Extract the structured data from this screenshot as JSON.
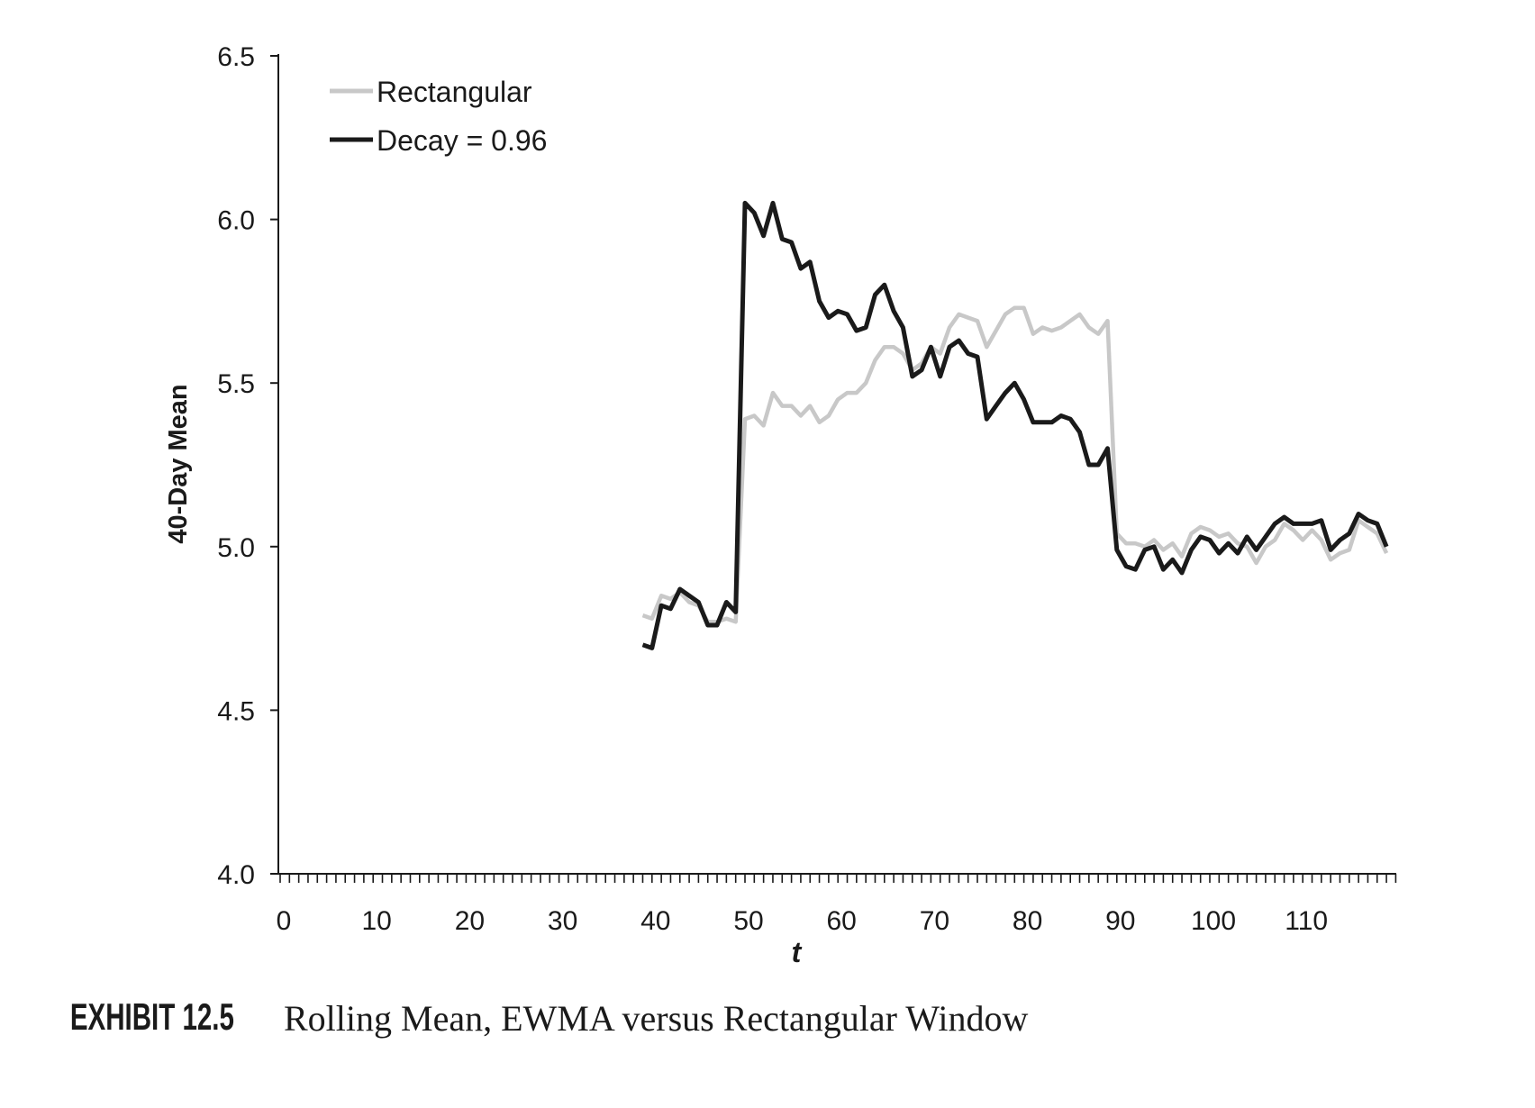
{
  "chart_data": {
    "type": "line",
    "title": "",
    "xlabel": "t",
    "ylabel": "40-Day Mean",
    "xlim": [
      0,
      120
    ],
    "ylim": [
      4.0,
      6.5
    ],
    "xticks": [
      0,
      10,
      20,
      30,
      40,
      50,
      60,
      70,
      80,
      90,
      100,
      110
    ],
    "yticks": [
      "4.0",
      "4.5",
      "5.0",
      "5.5",
      "6.0",
      "6.5"
    ],
    "grid": false,
    "legend_position": "top-left",
    "x_start": 39,
    "series": [
      {
        "name": "Rectangular",
        "color": "#c8c8c8",
        "values": [
          4.79,
          4.78,
          4.85,
          4.84,
          4.86,
          4.83,
          4.82,
          4.77,
          4.77,
          4.78,
          4.77,
          5.39,
          5.4,
          5.37,
          5.47,
          5.43,
          5.43,
          5.4,
          5.43,
          5.38,
          5.4,
          5.45,
          5.47,
          5.47,
          5.5,
          5.57,
          5.61,
          5.61,
          5.59,
          5.54,
          5.56,
          5.61,
          5.59,
          5.67,
          5.71,
          5.7,
          5.69,
          5.61,
          5.66,
          5.71,
          5.73,
          5.73,
          5.65,
          5.67,
          5.66,
          5.67,
          5.69,
          5.71,
          5.67,
          5.65,
          5.69,
          5.04,
          5.01,
          5.01,
          5.0,
          5.02,
          4.99,
          5.01,
          4.97,
          5.04,
          5.06,
          5.05,
          5.03,
          5.04,
          5.01,
          5.0,
          4.95,
          5.0,
          5.02,
          5.07,
          5.05,
          5.02,
          5.05,
          5.02,
          4.96,
          4.98,
          4.99,
          5.08,
          5.06,
          5.04,
          4.98
        ]
      },
      {
        "name": "Decay = 0.96",
        "color": "#1a1a1a",
        "values": [
          4.7,
          4.69,
          4.82,
          4.81,
          4.87,
          4.85,
          4.83,
          4.76,
          4.76,
          4.83,
          4.8,
          6.05,
          6.02,
          5.95,
          6.05,
          5.94,
          5.93,
          5.85,
          5.87,
          5.75,
          5.7,
          5.72,
          5.71,
          5.66,
          5.67,
          5.77,
          5.8,
          5.72,
          5.67,
          5.52,
          5.54,
          5.61,
          5.52,
          5.61,
          5.63,
          5.59,
          5.58,
          5.39,
          5.43,
          5.47,
          5.5,
          5.45,
          5.38,
          5.38,
          5.38,
          5.4,
          5.39,
          5.35,
          5.25,
          5.25,
          5.3,
          4.99,
          4.94,
          4.93,
          4.99,
          5.0,
          4.93,
          4.96,
          4.92,
          4.99,
          5.03,
          5.02,
          4.98,
          5.01,
          4.98,
          5.03,
          4.99,
          5.03,
          5.07,
          5.09,
          5.07,
          5.07,
          5.07,
          5.08,
          4.99,
          5.02,
          5.04,
          5.1,
          5.08,
          5.07,
          5.0
        ]
      }
    ]
  },
  "caption": {
    "label": "EXHIBIT 12.5",
    "text": "Rolling Mean, EWMA versus Rectangular Window"
  }
}
